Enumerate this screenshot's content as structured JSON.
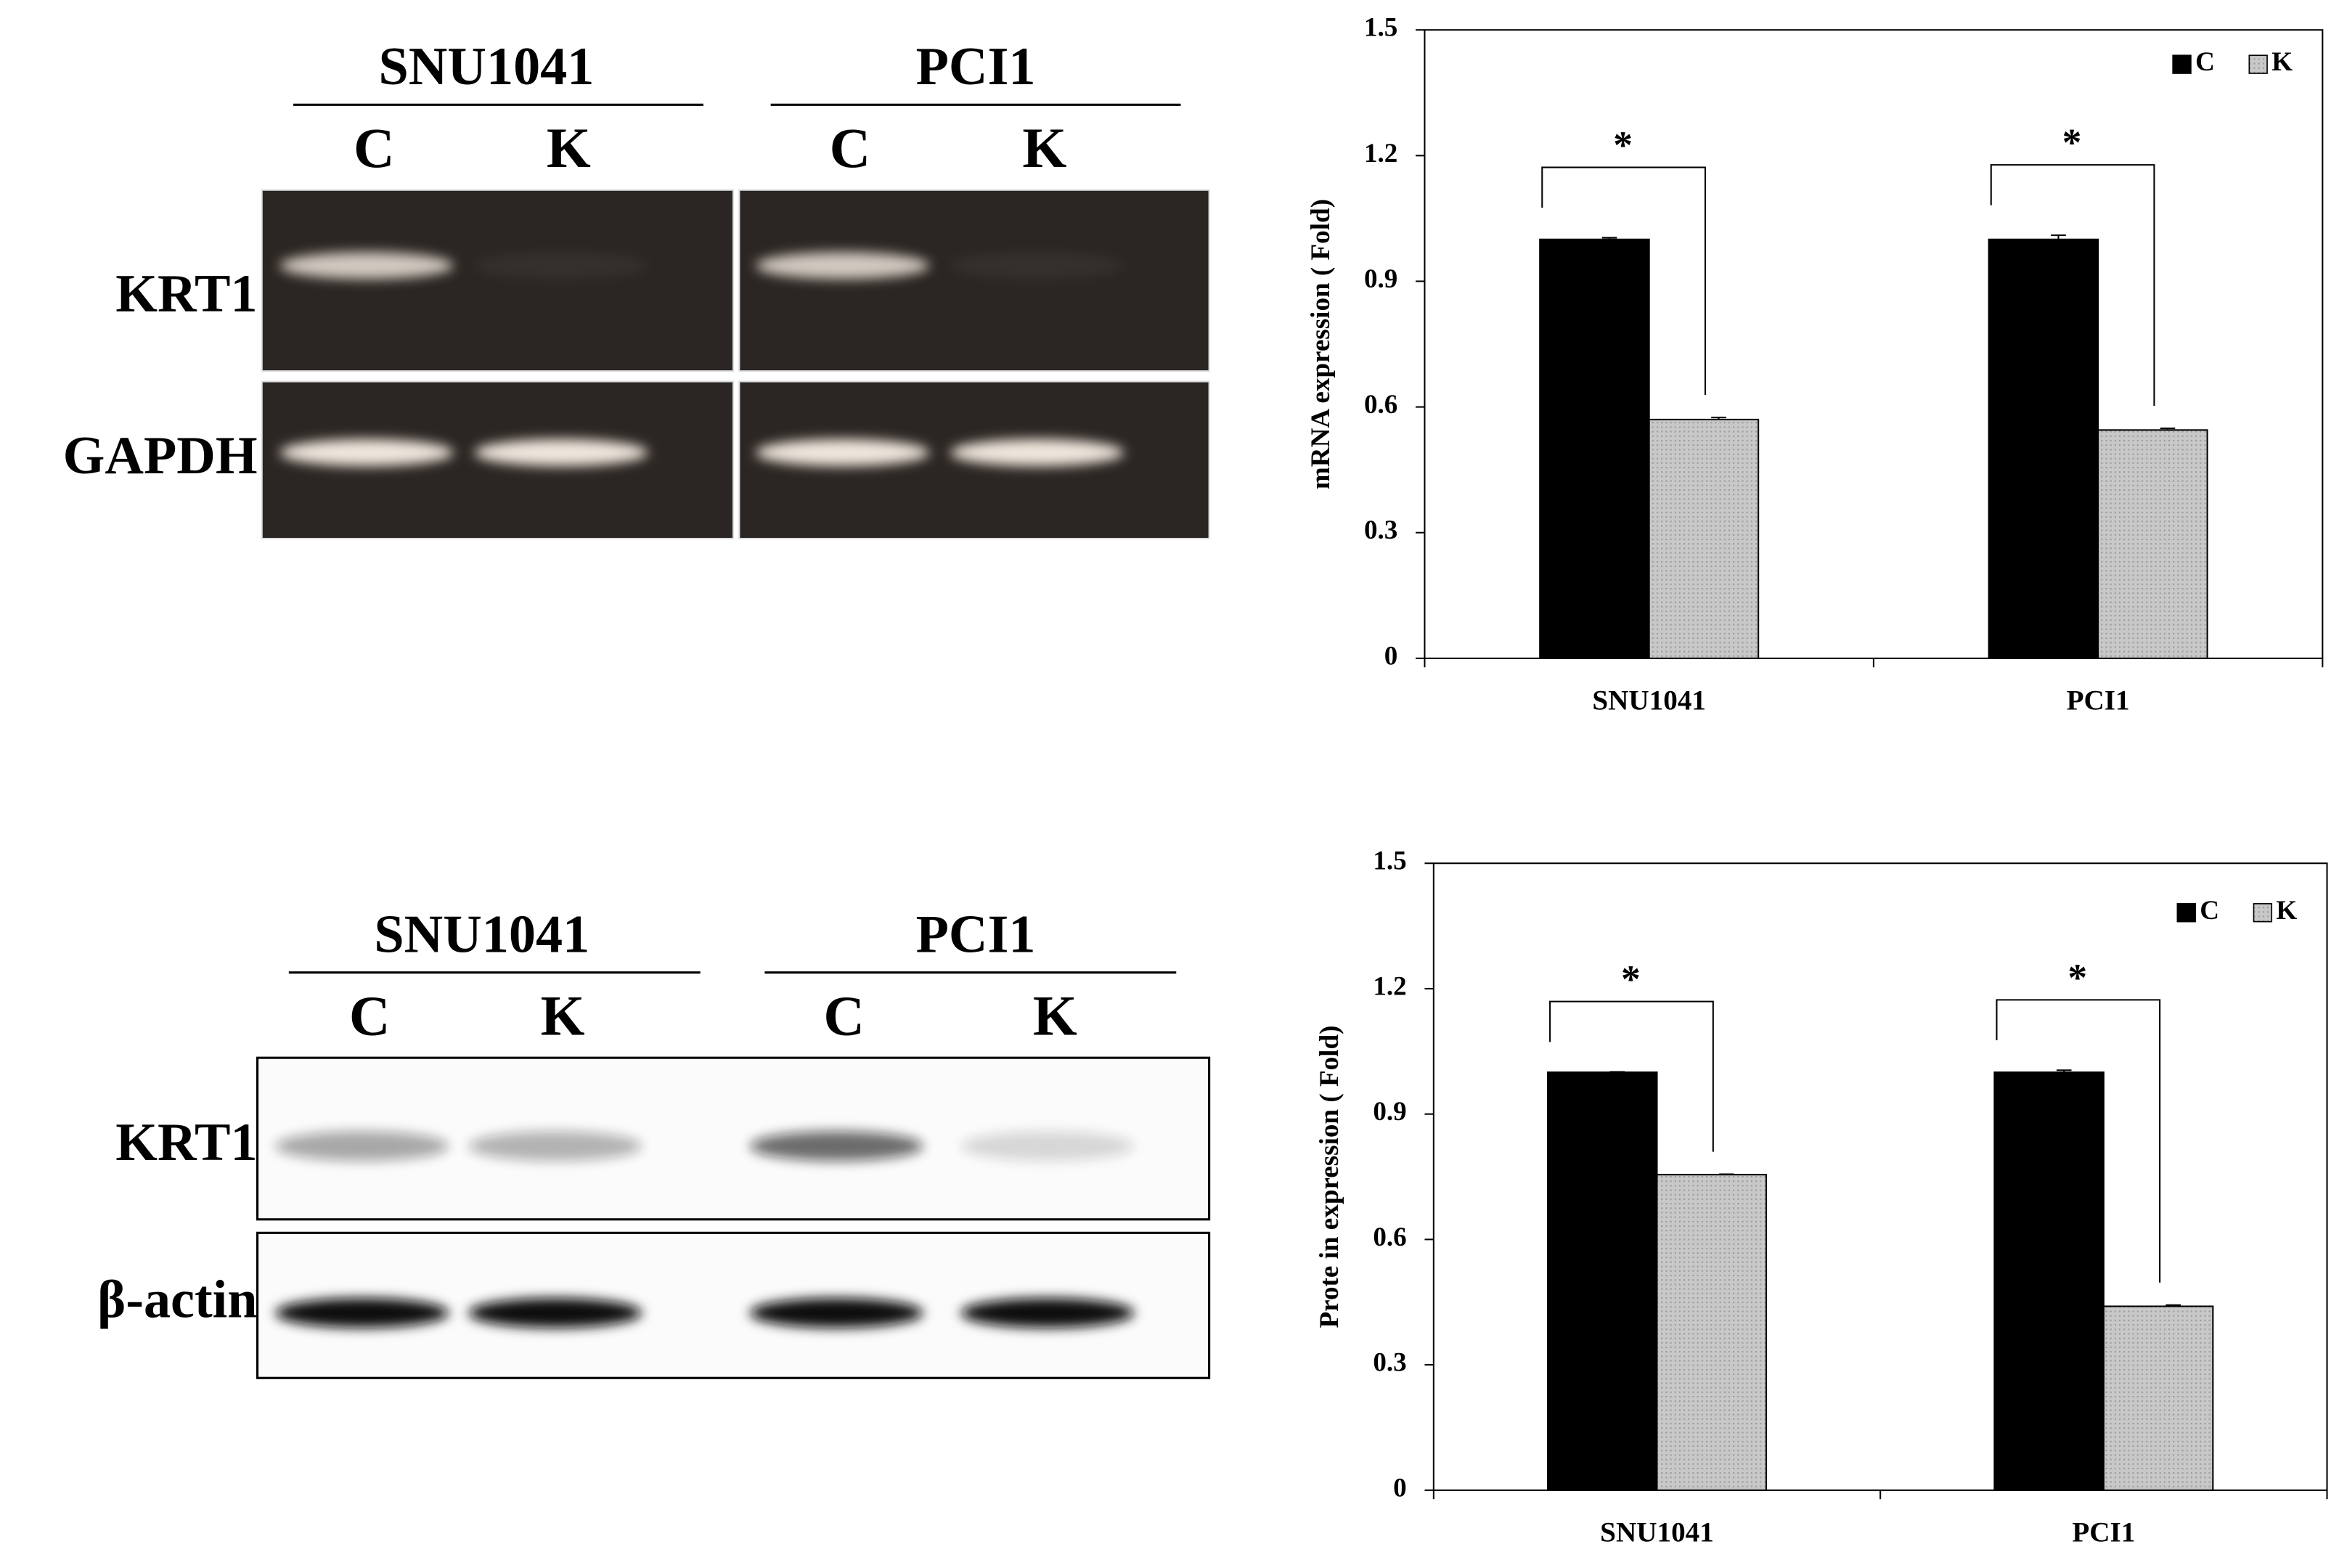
{
  "blots": [
    {
      "groups": [
        {
          "name": "SNU1041",
          "lanes": [
            "C",
            "K"
          ]
        },
        {
          "name": "PCI1",
          "lanes": [
            "C",
            "K"
          ]
        }
      ],
      "rows": [
        "KRT1",
        "GAPDH"
      ]
    },
    {
      "groups": [
        {
          "name": "SNU1041",
          "lanes": [
            "C",
            "K"
          ]
        },
        {
          "name": "PCI1",
          "lanes": [
            "C",
            "K"
          ]
        }
      ],
      "rows": [
        "KRT1",
        "β-actin"
      ]
    }
  ],
  "chart_data": [
    {
      "type": "bar",
      "y_label": "mRNA expression ( Fold)",
      "categories": [
        "SNU1041",
        "PCI1"
      ],
      "series": [
        {
          "name": "C",
          "color": "#000000",
          "values": [
            1.0,
            1.0
          ],
          "errors": [
            0.004,
            0.01
          ]
        },
        {
          "name": "K",
          "color": "#c8c8c8",
          "values": [
            0.57,
            0.545
          ],
          "errors": [
            0.005,
            0.004
          ]
        }
      ],
      "ylim": [
        0,
        1.5
      ],
      "yticks": [
        0,
        0.3,
        0.6,
        0.9,
        1.2,
        1.5
      ],
      "annotations": [
        "*",
        "*"
      ],
      "legend": "top-right"
    },
    {
      "type": "bar",
      "y_label": "Prote in expression ( Fold)",
      "categories": [
        "SNU1041",
        "PCI1"
      ],
      "series": [
        {
          "name": "C",
          "color": "#000000",
          "values": [
            1.0,
            1.0
          ],
          "errors": [
            0.001,
            0.005
          ]
        },
        {
          "name": "K",
          "color": "#c8c8c8",
          "values": [
            0.755,
            0.44
          ],
          "errors": [
            0.001,
            0.003
          ]
        }
      ],
      "ylim": [
        0,
        1.5
      ],
      "yticks": [
        0,
        0.3,
        0.6,
        0.9,
        1.2,
        1.5
      ],
      "annotations": [
        "*",
        "*"
      ],
      "legend": "top-right"
    }
  ]
}
